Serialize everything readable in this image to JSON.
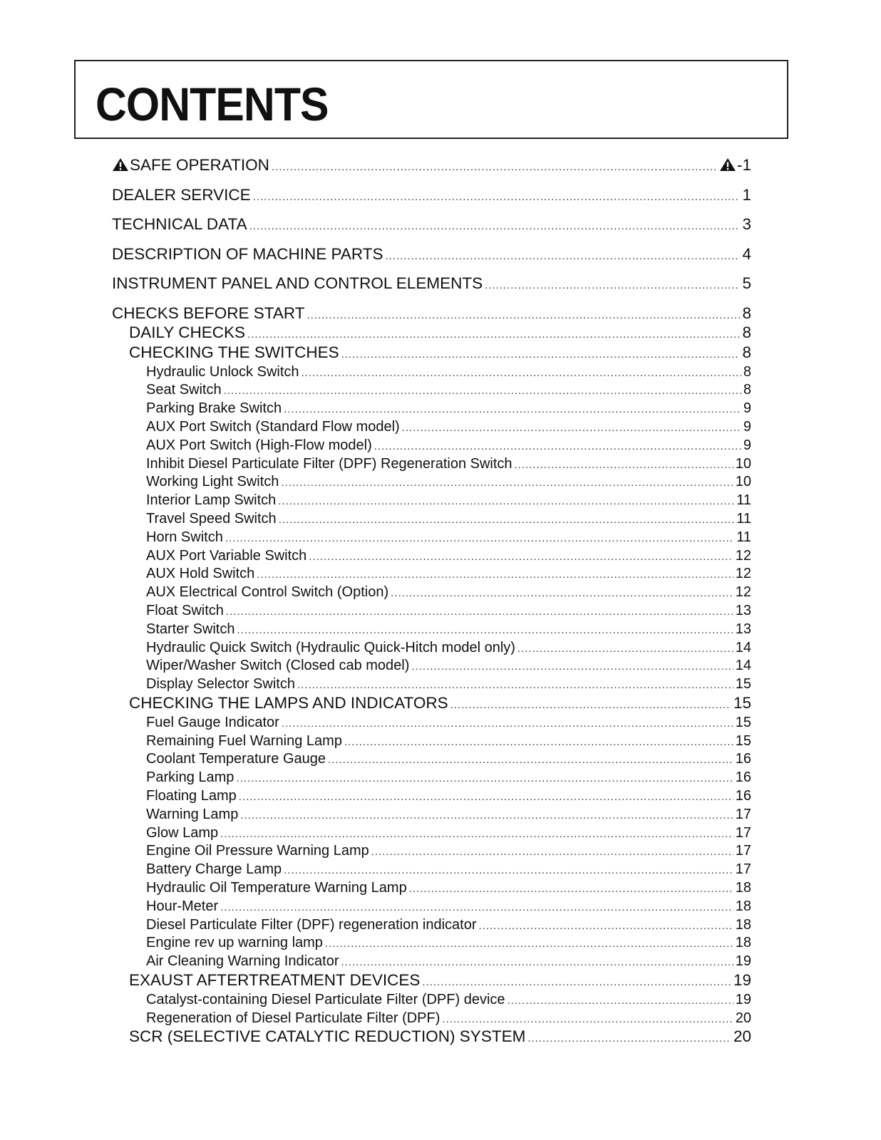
{
  "title": "CONTENTS",
  "icons": {
    "warning": "warning-triangle-icon"
  },
  "entries": [
    {
      "level": 0,
      "label": "SAFE OPERATION",
      "page": "-1",
      "icon": true
    },
    {
      "level": 0,
      "label": "DEALER SERVICE",
      "page": "1"
    },
    {
      "level": 0,
      "label": "TECHNICAL DATA",
      "page": "3"
    },
    {
      "level": 0,
      "label": "DESCRIPTION OF MACHINE PARTS",
      "page": "4"
    },
    {
      "level": 0,
      "label": "INSTRUMENT PANEL AND CONTROL ELEMENTS",
      "page": "5"
    },
    {
      "level": 0,
      "label": "CHECKS BEFORE START",
      "page": "8"
    },
    {
      "level": 1,
      "label": "DAILY CHECKS",
      "page": "8"
    },
    {
      "level": 1,
      "label": "CHECKING THE SWITCHES",
      "page": "8"
    },
    {
      "level": 2,
      "label": "Hydraulic Unlock Switch",
      "page": "8"
    },
    {
      "level": 2,
      "label": "Seat Switch",
      "page": "8"
    },
    {
      "level": 2,
      "label": "Parking Brake Switch",
      "page": "9"
    },
    {
      "level": 2,
      "label": "AUX Port Switch (Standard Flow model)",
      "page": "9"
    },
    {
      "level": 2,
      "label": "AUX Port Switch (High-Flow model)",
      "page": "9"
    },
    {
      "level": 2,
      "label": "Inhibit Diesel Particulate Filter (DPF) Regeneration Switch",
      "page": "10"
    },
    {
      "level": 2,
      "label": "Working Light Switch",
      "page": "10"
    },
    {
      "level": 2,
      "label": "Interior Lamp Switch",
      "page": "11"
    },
    {
      "level": 2,
      "label": "Travel Speed Switch",
      "page": "11"
    },
    {
      "level": 2,
      "label": "Horn Switch",
      "page": "11"
    },
    {
      "level": 2,
      "label": "AUX Port Variable Switch",
      "page": "12"
    },
    {
      "level": 2,
      "label": "AUX Hold Switch",
      "page": "12"
    },
    {
      "level": 2,
      "label": "AUX Electrical Control Switch (Option)",
      "page": "12"
    },
    {
      "level": 2,
      "label": "Float Switch",
      "page": "13"
    },
    {
      "level": 2,
      "label": "Starter Switch",
      "page": "13"
    },
    {
      "level": 2,
      "label": "Hydraulic Quick Switch (Hydraulic Quick-Hitch model only)",
      "page": "14"
    },
    {
      "level": 2,
      "label": "Wiper/Washer Switch (Closed cab model)",
      "page": "14"
    },
    {
      "level": 2,
      "label": "Display Selector Switch",
      "page": "15"
    },
    {
      "level": 1,
      "label": "CHECKING THE LAMPS AND INDICATORS",
      "page": "15"
    },
    {
      "level": 2,
      "label": "Fuel Gauge Indicator",
      "page": "15"
    },
    {
      "level": 2,
      "label": "Remaining Fuel Warning Lamp",
      "page": "15"
    },
    {
      "level": 2,
      "label": "Coolant Temperature Gauge",
      "page": "16"
    },
    {
      "level": 2,
      "label": "Parking Lamp",
      "page": "16"
    },
    {
      "level": 2,
      "label": "Floating Lamp",
      "page": "16"
    },
    {
      "level": 2,
      "label": "Warning Lamp",
      "page": "17"
    },
    {
      "level": 2,
      "label": "Glow Lamp",
      "page": "17"
    },
    {
      "level": 2,
      "label": "Engine Oil Pressure Warning Lamp",
      "page": "17"
    },
    {
      "level": 2,
      "label": "Battery Charge Lamp",
      "page": "17"
    },
    {
      "level": 2,
      "label": "Hydraulic Oil Temperature Warning Lamp",
      "page": "18"
    },
    {
      "level": 2,
      "label": "Hour-Meter",
      "page": "18"
    },
    {
      "level": 2,
      "label": "Diesel Particulate Filter (DPF) regeneration indicator",
      "page": "18"
    },
    {
      "level": 2,
      "label": "Engine rev up warning lamp",
      "page": "18"
    },
    {
      "level": 2,
      "label": "Air Cleaning Warning Indicator",
      "page": "19"
    },
    {
      "level": 1,
      "label": "EXAUST AFTERTREATMENT DEVICES",
      "page": "19"
    },
    {
      "level": 2,
      "label": "Catalyst-containing Diesel Particulate Filter (DPF) device",
      "page": "19"
    },
    {
      "level": 2,
      "label": "Regeneration of Diesel Particulate Filter (DPF)",
      "page": "20"
    },
    {
      "level": 1,
      "label": "SCR (SELECTIVE CATALYTIC REDUCTION) SYSTEM",
      "page": "20"
    }
  ]
}
